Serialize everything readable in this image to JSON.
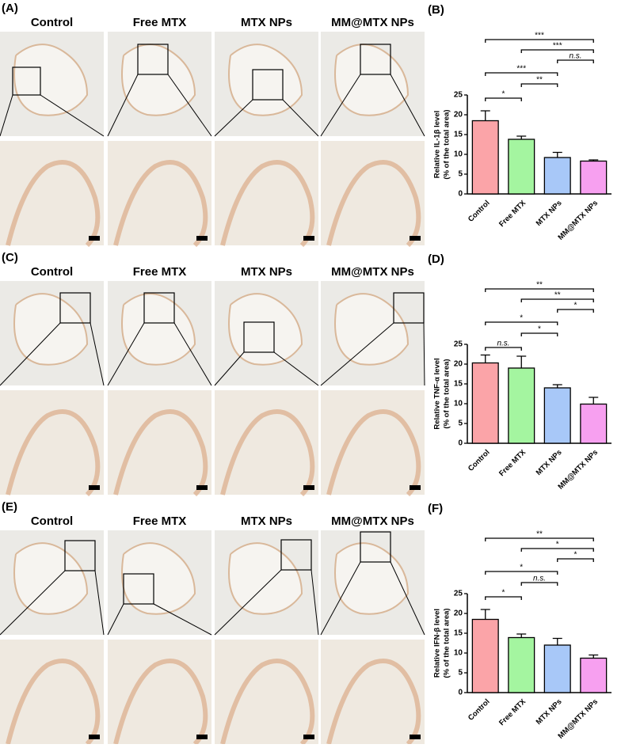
{
  "figure_panels": [
    {
      "label": "(A)",
      "columns": [
        "Control",
        "Free MTX",
        "MTX NPs",
        "MM@MTX NPs"
      ]
    },
    {
      "label": "(C)",
      "columns": [
        "Control",
        "Free MTX",
        "MTX NPs",
        "MM@MTX NPs"
      ]
    },
    {
      "label": "(E)",
      "columns": [
        "Control",
        "Free MTX",
        "MTX NPs",
        "MM@MTX NPs"
      ]
    }
  ],
  "chart_data": [
    {
      "type": "bar",
      "label": "(B)",
      "ylabel": [
        "Relative IL-1β  level",
        "(% of the total area)"
      ],
      "categories": [
        "Control",
        "Free MTX",
        "MTX NPs",
        "MM@MTX NPs"
      ],
      "values": [
        18.5,
        13.8,
        9.2,
        8.3
      ],
      "errors": [
        2.5,
        0.8,
        1.3,
        0.3
      ],
      "colors": [
        "#fba4a8",
        "#a4f5a0",
        "#a8c8f8",
        "#f7a0f0"
      ],
      "ylim": [
        0,
        25
      ],
      "yticks": [
        0,
        5,
        10,
        15,
        20,
        25
      ],
      "annotations": [
        {
          "text": "***",
          "from": 0,
          "to": 3
        },
        {
          "text": "***",
          "from": 1,
          "to": 3
        },
        {
          "text": "n.s.",
          "from": 2,
          "to": 3
        },
        {
          "text": "***",
          "from": 0,
          "to": 2
        },
        {
          "text": "**",
          "from": 1,
          "to": 2
        },
        {
          "text": "*",
          "from": 0,
          "to": 1
        }
      ]
    },
    {
      "type": "bar",
      "label": "(D)",
      "ylabel": [
        "Relative TNF-α  level",
        "(% of the total area)"
      ],
      "categories": [
        "Control",
        "Free MTX",
        "MTX NPs",
        "MM@MTX NPs"
      ],
      "values": [
        20.3,
        19,
        14,
        9.9
      ],
      "errors": [
        2,
        3,
        0.8,
        1.7
      ],
      "colors": [
        "#fba4a8",
        "#a4f5a0",
        "#a8c8f8",
        "#f7a0f0"
      ],
      "ylim": [
        0,
        25
      ],
      "yticks": [
        0,
        5,
        10,
        15,
        20,
        25
      ],
      "annotations": [
        {
          "text": "**",
          "from": 0,
          "to": 3
        },
        {
          "text": "**",
          "from": 1,
          "to": 3
        },
        {
          "text": "*",
          "from": 2,
          "to": 3
        },
        {
          "text": "*",
          "from": 0,
          "to": 2
        },
        {
          "text": "*",
          "from": 1,
          "to": 2
        },
        {
          "text": "n.s.",
          "from": 0,
          "to": 1
        }
      ]
    },
    {
      "type": "bar",
      "label": "(F)",
      "ylabel": [
        "Relative IFN-β  level",
        "(% of the total area)"
      ],
      "categories": [
        "Control",
        "Free MTX",
        "MTX NPs",
        "MM@MTX NPs"
      ],
      "values": [
        18.5,
        13.9,
        12,
        8.7
      ],
      "errors": [
        2.5,
        0.9,
        1.7,
        0.8
      ],
      "colors": [
        "#fba4a8",
        "#a4f5a0",
        "#a8c8f8",
        "#f7a0f0"
      ],
      "ylim": [
        0,
        25
      ],
      "yticks": [
        0,
        5,
        10,
        15,
        20,
        25
      ],
      "annotations": [
        {
          "text": "**",
          "from": 0,
          "to": 3
        },
        {
          "text": "*",
          "from": 1,
          "to": 3
        },
        {
          "text": "*",
          "from": 2,
          "to": 3
        },
        {
          "text": "*",
          "from": 0,
          "to": 2
        },
        {
          "text": "n.s.",
          "from": 1,
          "to": 2
        },
        {
          "text": "*",
          "from": 0,
          "to": 1
        }
      ]
    }
  ]
}
